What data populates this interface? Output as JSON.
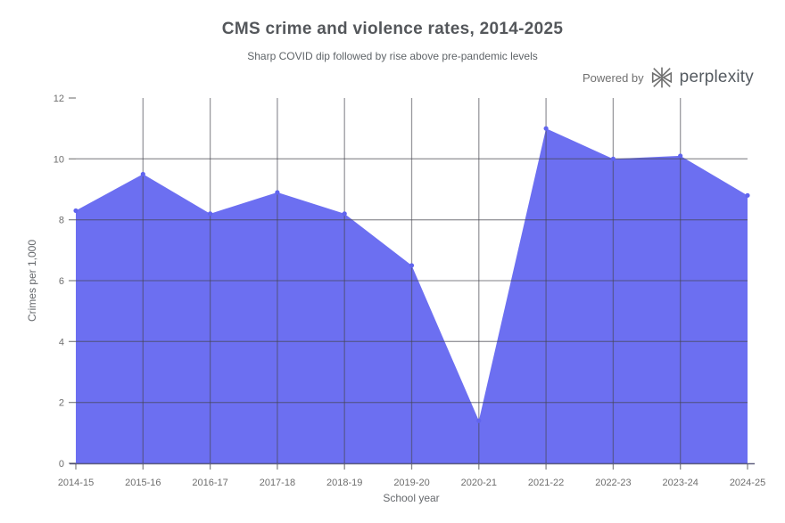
{
  "header": {
    "title": "CMS crime and violence rates, 2014-2025",
    "subtitle": "Sharp COVID dip followed by rise above pre-pandemic levels",
    "powered_by": "Powered by",
    "brand": "perplexity"
  },
  "chart_data": {
    "type": "area",
    "title": "CMS crime and violence rates, 2014-2025",
    "subtitle": "Sharp COVID dip followed by rise above pre-pandemic levels",
    "categories": [
      "2014-15",
      "2015-16",
      "2016-17",
      "2017-18",
      "2018-19",
      "2019-20",
      "2020-21",
      "2021-22",
      "2022-23",
      "2023-24",
      "2024-25"
    ],
    "values": [
      8.3,
      9.5,
      8.2,
      8.9,
      8.2,
      6.5,
      1.4,
      11.0,
      10.0,
      10.1,
      8.8
    ],
    "xlabel": "School year",
    "ylabel": "Crimes per 1,000",
    "ylim": [
      0,
      12
    ],
    "yticks": [
      0,
      2,
      4,
      6,
      8,
      10,
      12
    ],
    "grid": true,
    "legend": "none",
    "colors": {
      "area_fill": "#6467f0",
      "marker": "#6064ee",
      "gridline": "rgba(70,70,78,0.55)",
      "tick": "#8a8a8a",
      "axis_line": "rgba(55,55,95,0.8)",
      "tick_label": "#6e6e6e"
    }
  }
}
